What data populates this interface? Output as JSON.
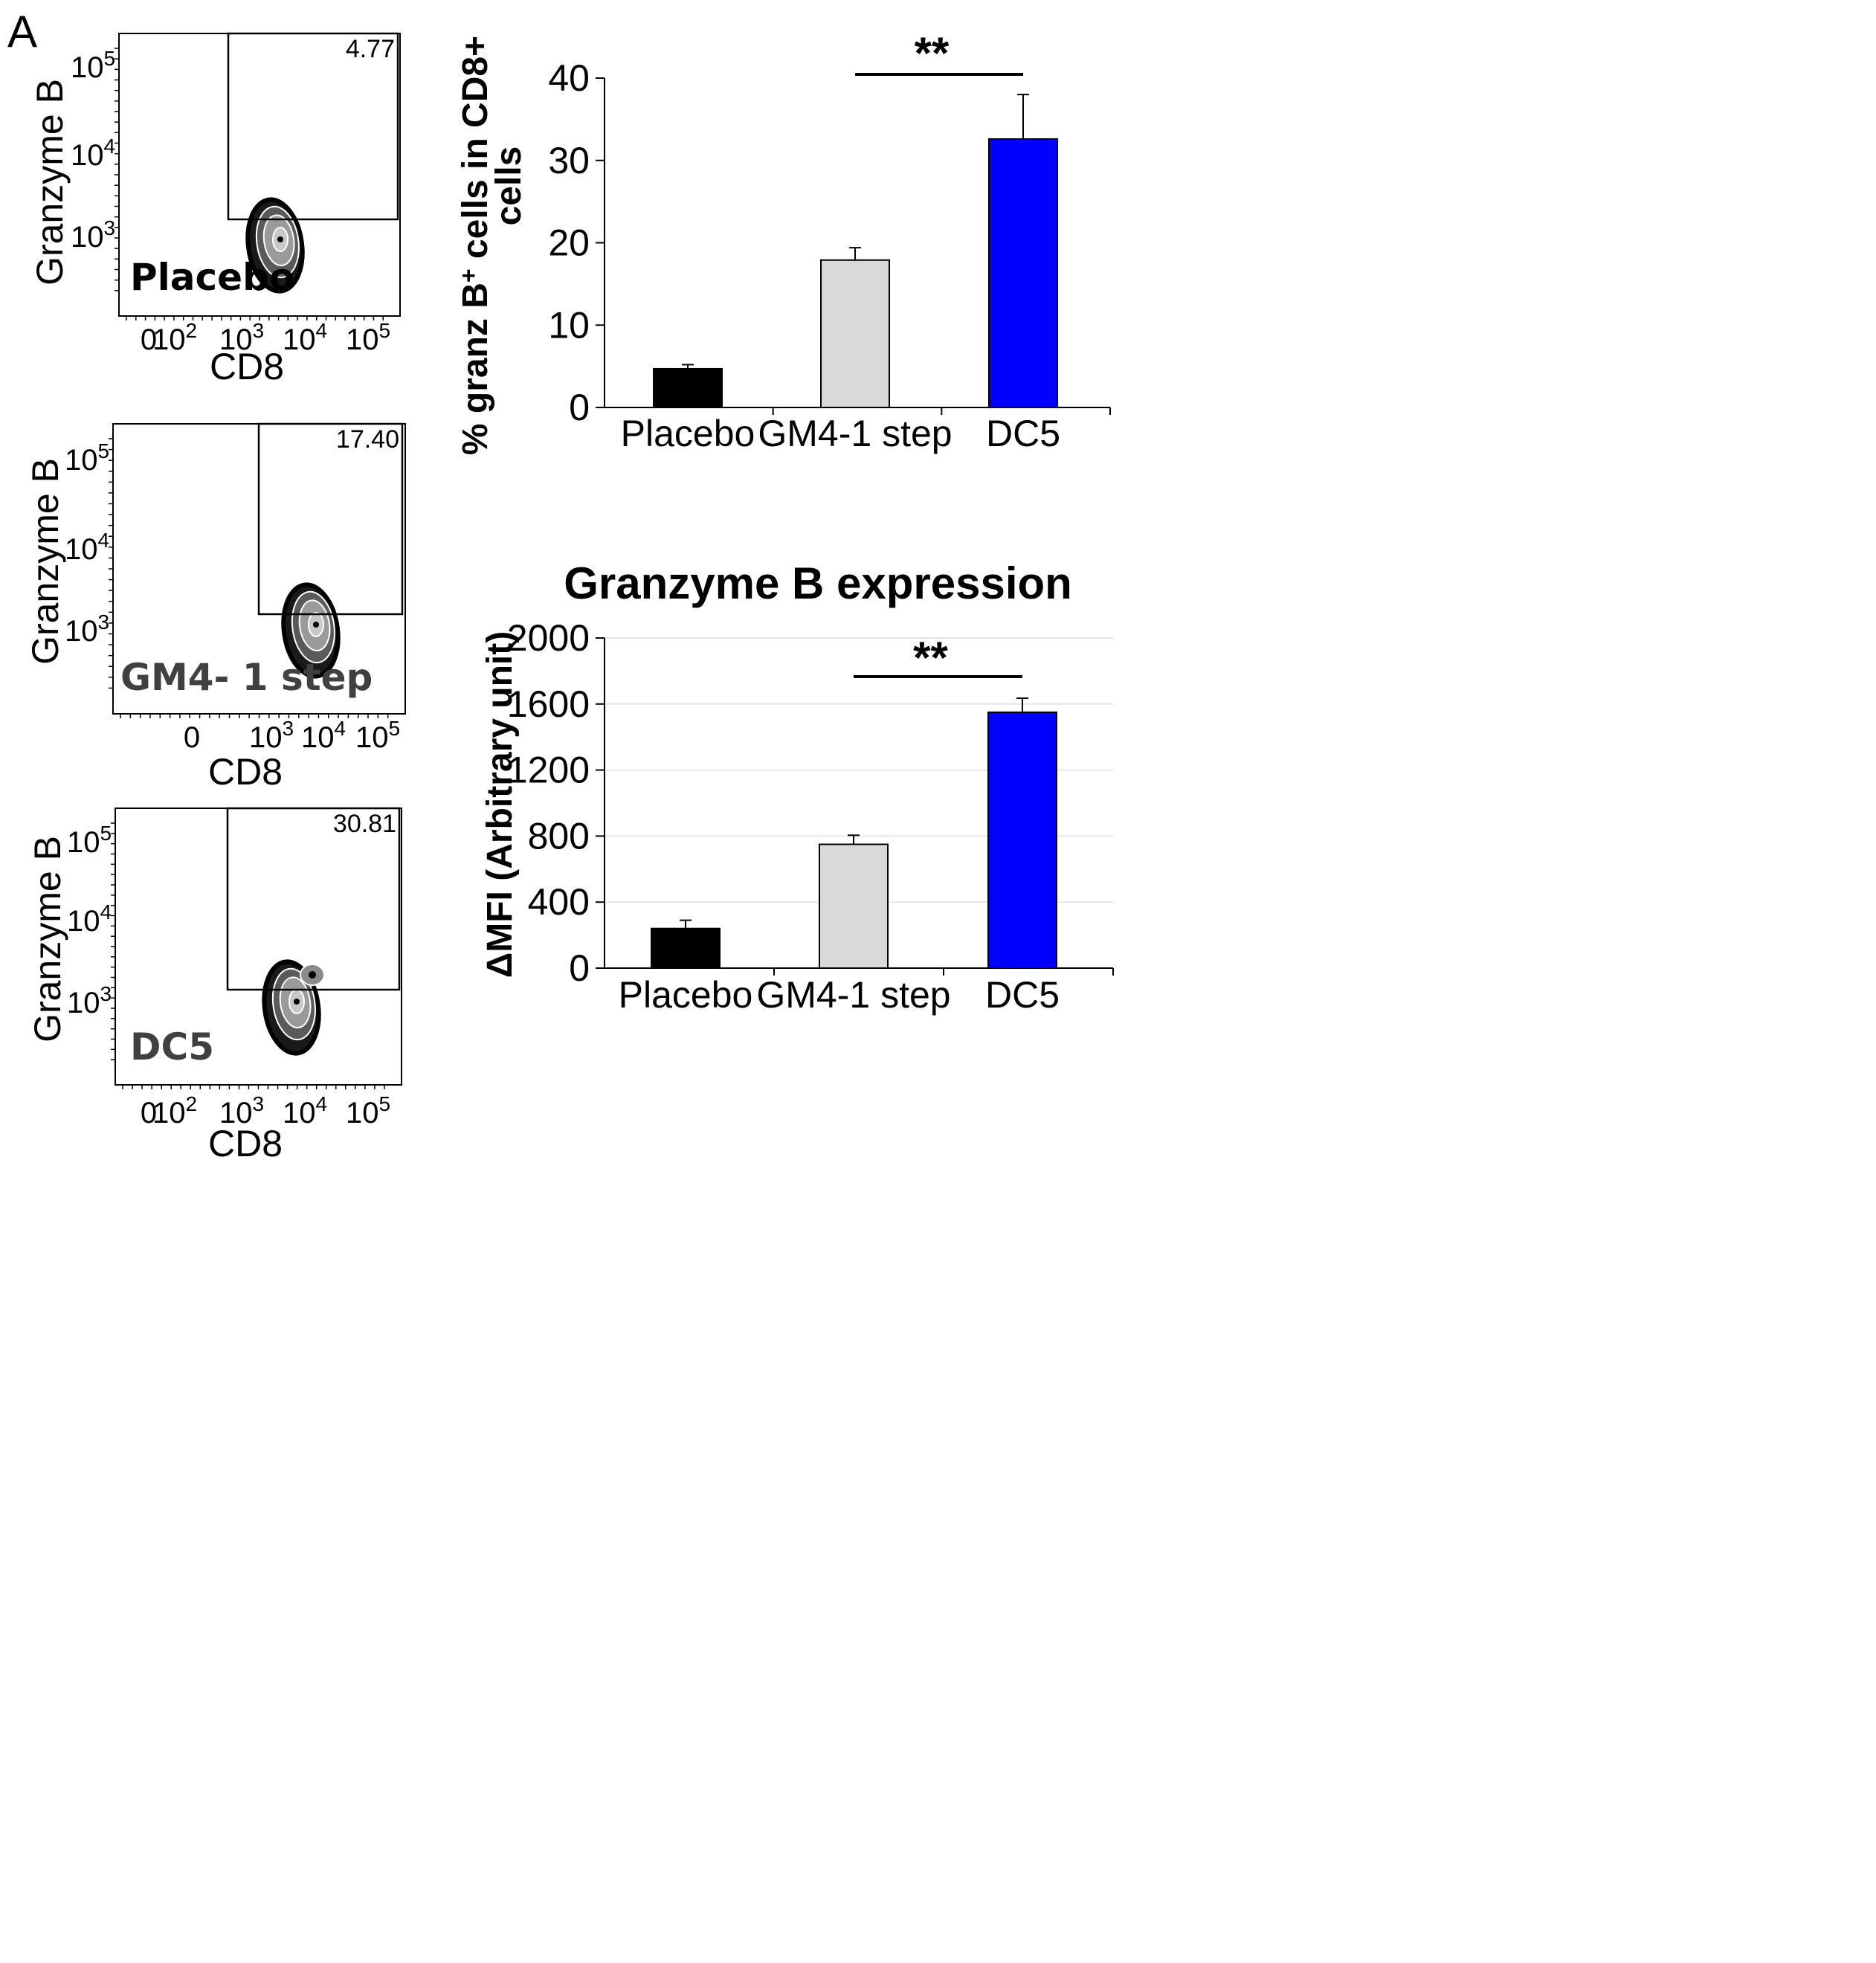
{
  "figure": {
    "panel_label": "A"
  },
  "colors": {
    "placebo_bar": "#000000",
    "gm4_bar": "#d9d9d9",
    "dc5_bar": "#0000ff",
    "axis": "#000000",
    "gridline": "#e6e6e6",
    "sample_label_gray": "#404040"
  },
  "flow_plots": [
    {
      "sample": "Placebo",
      "sample_color": "#000000",
      "gate_value": "4.77",
      "y_axis_label": "Granzyme B",
      "x_axis_label": "CD8",
      "y_ticks": [
        "10^5",
        "10^4",
        "10^3"
      ],
      "x_ticks": [
        "0",
        "10^2",
        "10^3",
        "10^4",
        "10^5"
      ]
    },
    {
      "sample": "GM4- 1 step",
      "sample_color": "#404040",
      "gate_value": "17.40",
      "y_axis_label": "Granzyme B",
      "x_axis_label": "CD8",
      "y_ticks": [
        "10^5",
        "10^4",
        "10^3"
      ],
      "x_ticks": [
        "0",
        "10^3",
        "10^4",
        "10^5"
      ]
    },
    {
      "sample": "DC5",
      "sample_color": "#404040",
      "gate_value": "30.81",
      "y_axis_label": "Granzyme B",
      "x_axis_label": "CD8",
      "y_ticks": [
        "10^5",
        "10^4",
        "10^3"
      ],
      "x_ticks": [
        "0",
        "10^2",
        "10^3",
        "10^4",
        "10^5"
      ]
    }
  ],
  "chart_data": [
    {
      "type": "bar",
      "title": "",
      "ylabel_line1": "% granz B",
      "ylabel_sup": "+",
      "ylabel_line1_rest": " cells in CD8+",
      "ylabel_line2": "cells",
      "xlabel": "",
      "categories": [
        "Placebo",
        "GM4-1 step",
        "DC5"
      ],
      "values": [
        4.7,
        17.9,
        32.6
      ],
      "errors": [
        0.5,
        1.5,
        5.4
      ],
      "ylim": [
        0,
        40
      ],
      "yticks": [
        0,
        10,
        20,
        30,
        40
      ],
      "gridlines": false,
      "significance": {
        "from": "GM4-1 step",
        "to": "DC5",
        "label": "**"
      }
    },
    {
      "type": "bar",
      "title": "Granzyme B expression",
      "ylabel": "ΔMFI (Arbitrary unit)",
      "xlabel": "",
      "categories": [
        "Placebo",
        "GM4-1 step",
        "DC5"
      ],
      "values": [
        240,
        750,
        1550
      ],
      "errors": [
        50,
        55,
        85
      ],
      "ylim": [
        0,
        2000
      ],
      "yticks": [
        0,
        400,
        800,
        1200,
        1600,
        2000
      ],
      "gridlines": true,
      "significance": {
        "from": "GM4-1 step",
        "to": "DC5",
        "label": "**"
      }
    }
  ]
}
